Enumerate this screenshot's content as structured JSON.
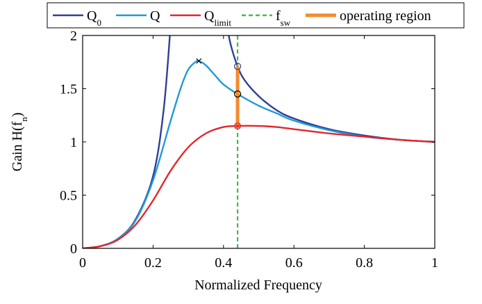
{
  "colors": {
    "q0": "#2e3f95",
    "q": "#1f9ad6",
    "qlimit": "#e3262b",
    "fsw": "#4cb848",
    "operating_region": "#f58a2d",
    "marker": "#000000"
  },
  "legend": {
    "items": [
      {
        "key": "q0",
        "main": "Q",
        "sub": "0",
        "style": "line"
      },
      {
        "key": "q",
        "main": "Q",
        "sub": "",
        "style": "line"
      },
      {
        "key": "qlimit",
        "main": "Q",
        "sub": "limit",
        "style": "line"
      },
      {
        "key": "fsw",
        "main": "f",
        "sub": "sw",
        "style": "dashed"
      },
      {
        "key": "operating_region",
        "main": "operating region",
        "sub": "",
        "style": "thick"
      }
    ]
  },
  "chart_data": {
    "type": "line",
    "title": "",
    "xlabel": "Normalized Frequency",
    "ylabel_main": "Gain H(f",
    "ylabel_sub": "n",
    "ylabel_tail": ")",
    "xlim": [
      0,
      1
    ],
    "ylim": [
      0,
      2
    ],
    "x_ticks": [
      {
        "value": 0,
        "label": "0"
      },
      {
        "value": 0.2,
        "label": "0.2"
      },
      {
        "value": 0.4,
        "label": "0.4"
      },
      {
        "value": 0.6,
        "label": "0.6"
      },
      {
        "value": 0.8,
        "label": "0.8"
      },
      {
        "value": 1,
        "label": "1"
      }
    ],
    "y_ticks": [
      {
        "value": 0,
        "label": "0"
      },
      {
        "value": 0.5,
        "label": "0.5"
      },
      {
        "value": 1,
        "label": "1"
      },
      {
        "value": 1.5,
        "label": "1.5"
      },
      {
        "value": 2,
        "label": "2"
      }
    ],
    "grid": false,
    "legend_position": "top",
    "series": [
      {
        "name": "Q0",
        "color_key": "q0",
        "points": [
          [
            0,
            0
          ],
          [
            0.05,
            0.02
          ],
          [
            0.1,
            0.09
          ],
          [
            0.15,
            0.27
          ],
          [
            0.2,
            0.68
          ],
          [
            0.23,
            1.3
          ],
          [
            0.25,
            2.1
          ]
        ]
      },
      {
        "name": "Q0",
        "color_key": "q0",
        "points": [
          [
            0.41,
            2.1
          ],
          [
            0.42,
            1.92
          ],
          [
            0.44,
            1.71
          ],
          [
            0.46,
            1.58
          ],
          [
            0.5,
            1.43
          ],
          [
            0.55,
            1.3
          ],
          [
            0.6,
            1.22
          ],
          [
            0.7,
            1.12
          ],
          [
            0.8,
            1.06
          ],
          [
            0.9,
            1.02
          ],
          [
            1,
            1
          ]
        ]
      },
      {
        "name": "Q",
        "color_key": "q",
        "points": [
          [
            0,
            0
          ],
          [
            0.05,
            0.02
          ],
          [
            0.1,
            0.09
          ],
          [
            0.15,
            0.26
          ],
          [
            0.2,
            0.64
          ],
          [
            0.25,
            1.2
          ],
          [
            0.28,
            1.52
          ],
          [
            0.3,
            1.68
          ],
          [
            0.32,
            1.75
          ],
          [
            0.33,
            1.76
          ],
          [
            0.35,
            1.72
          ],
          [
            0.38,
            1.61
          ],
          [
            0.4,
            1.54
          ],
          [
            0.44,
            1.45
          ],
          [
            0.5,
            1.34
          ],
          [
            0.55,
            1.27
          ],
          [
            0.6,
            1.2
          ],
          [
            0.7,
            1.11
          ],
          [
            0.8,
            1.05
          ],
          [
            0.9,
            1.02
          ],
          [
            1,
            1
          ]
        ]
      },
      {
        "name": "Qlimit",
        "color_key": "qlimit",
        "points": [
          [
            0,
            0
          ],
          [
            0.05,
            0.02
          ],
          [
            0.1,
            0.08
          ],
          [
            0.15,
            0.22
          ],
          [
            0.2,
            0.45
          ],
          [
            0.25,
            0.73
          ],
          [
            0.3,
            0.95
          ],
          [
            0.35,
            1.08
          ],
          [
            0.4,
            1.14
          ],
          [
            0.44,
            1.15
          ],
          [
            0.5,
            1.15
          ],
          [
            0.55,
            1.14
          ],
          [
            0.6,
            1.12
          ],
          [
            0.7,
            1.08
          ],
          [
            0.8,
            1.05
          ],
          [
            0.9,
            1.02
          ],
          [
            1,
            1
          ]
        ]
      }
    ],
    "fsw": {
      "x": 0.44
    },
    "operating_region": {
      "x": 0.44,
      "y_from": 1.15,
      "y_to": 1.71
    },
    "markers": [
      {
        "name": "q-peak",
        "x": 0.33,
        "y": 1.76,
        "shape": "x",
        "color_key": "marker"
      },
      {
        "name": "q0-at-fsw",
        "x": 0.44,
        "y": 1.71,
        "shape": "circle",
        "color_key": "q0"
      },
      {
        "name": "q-at-fsw",
        "x": 0.44,
        "y": 1.45,
        "shape": "circle",
        "color_key": "marker"
      },
      {
        "name": "qlimit-at-fsw",
        "x": 0.44,
        "y": 1.15,
        "shape": "circle-x",
        "color_key": "qlimit"
      }
    ]
  }
}
